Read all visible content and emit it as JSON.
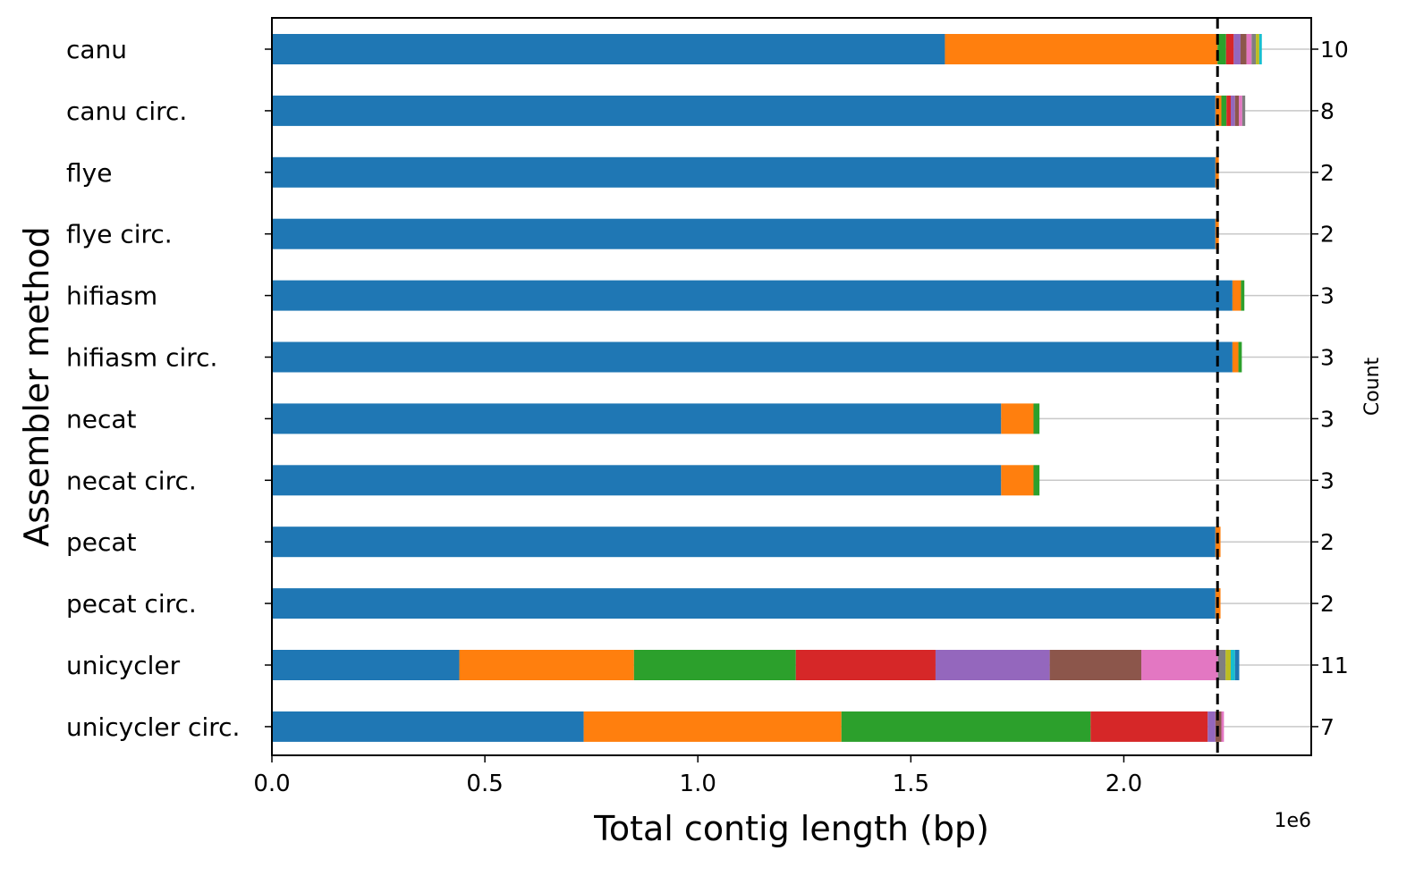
{
  "chart_data": {
    "type": "bar",
    "orientation": "horizontal",
    "stacked": true,
    "xlabel": "Total contig length (bp)",
    "ylabel": "Assembler method",
    "secondary_ylabel": "Count",
    "x_offset_label": "1e6",
    "xlim": [
      0,
      2440000
    ],
    "x_ticks": [
      0,
      500000,
      1000000,
      1500000,
      2000000
    ],
    "x_tick_labels": [
      "0.0",
      "0.5",
      "1.0",
      "1.5",
      "2.0"
    ],
    "reference_line": 2220000,
    "grid": false,
    "categories": [
      "canu",
      "canu circ.",
      "flye",
      "flye circ.",
      "hifiasm",
      "hifiasm circ.",
      "necat",
      "necat circ.",
      "pecat",
      "pecat circ.",
      "unicycler",
      "unicycler circ."
    ],
    "counts": [
      "10",
      "8",
      "2",
      "2",
      "3",
      "3",
      "3",
      "3",
      "2",
      "2",
      "11",
      "7"
    ],
    "segments": [
      [
        1580000,
        640000,
        20000,
        18000,
        16000,
        14000,
        12000,
        10000,
        8000,
        6000
      ],
      [
        2215000,
        14000,
        12000,
        10000,
        10000,
        9000,
        8000,
        7000
      ],
      [
        2215000,
        8000
      ],
      [
        2215000,
        8000
      ],
      [
        2255000,
        20000,
        8000
      ],
      [
        2255000,
        14000,
        8000
      ],
      [
        1712000,
        76000,
        14000
      ],
      [
        1712000,
        76000,
        14000
      ],
      [
        2215000,
        12000
      ],
      [
        2215000,
        12000
      ],
      [
        440000,
        410000,
        380000,
        328000,
        268000,
        215000,
        180000,
        18000,
        12000,
        10000,
        10000
      ],
      [
        732000,
        605000,
        585000,
        275000,
        18000,
        14000,
        6000
      ]
    ],
    "palette": [
      "#1f77b4",
      "#ff7f0e",
      "#2ca02c",
      "#d62728",
      "#9467bd",
      "#8c564b",
      "#e377c2",
      "#7f7f7f",
      "#bcbd22",
      "#17becf",
      "#1f77b4"
    ]
  }
}
